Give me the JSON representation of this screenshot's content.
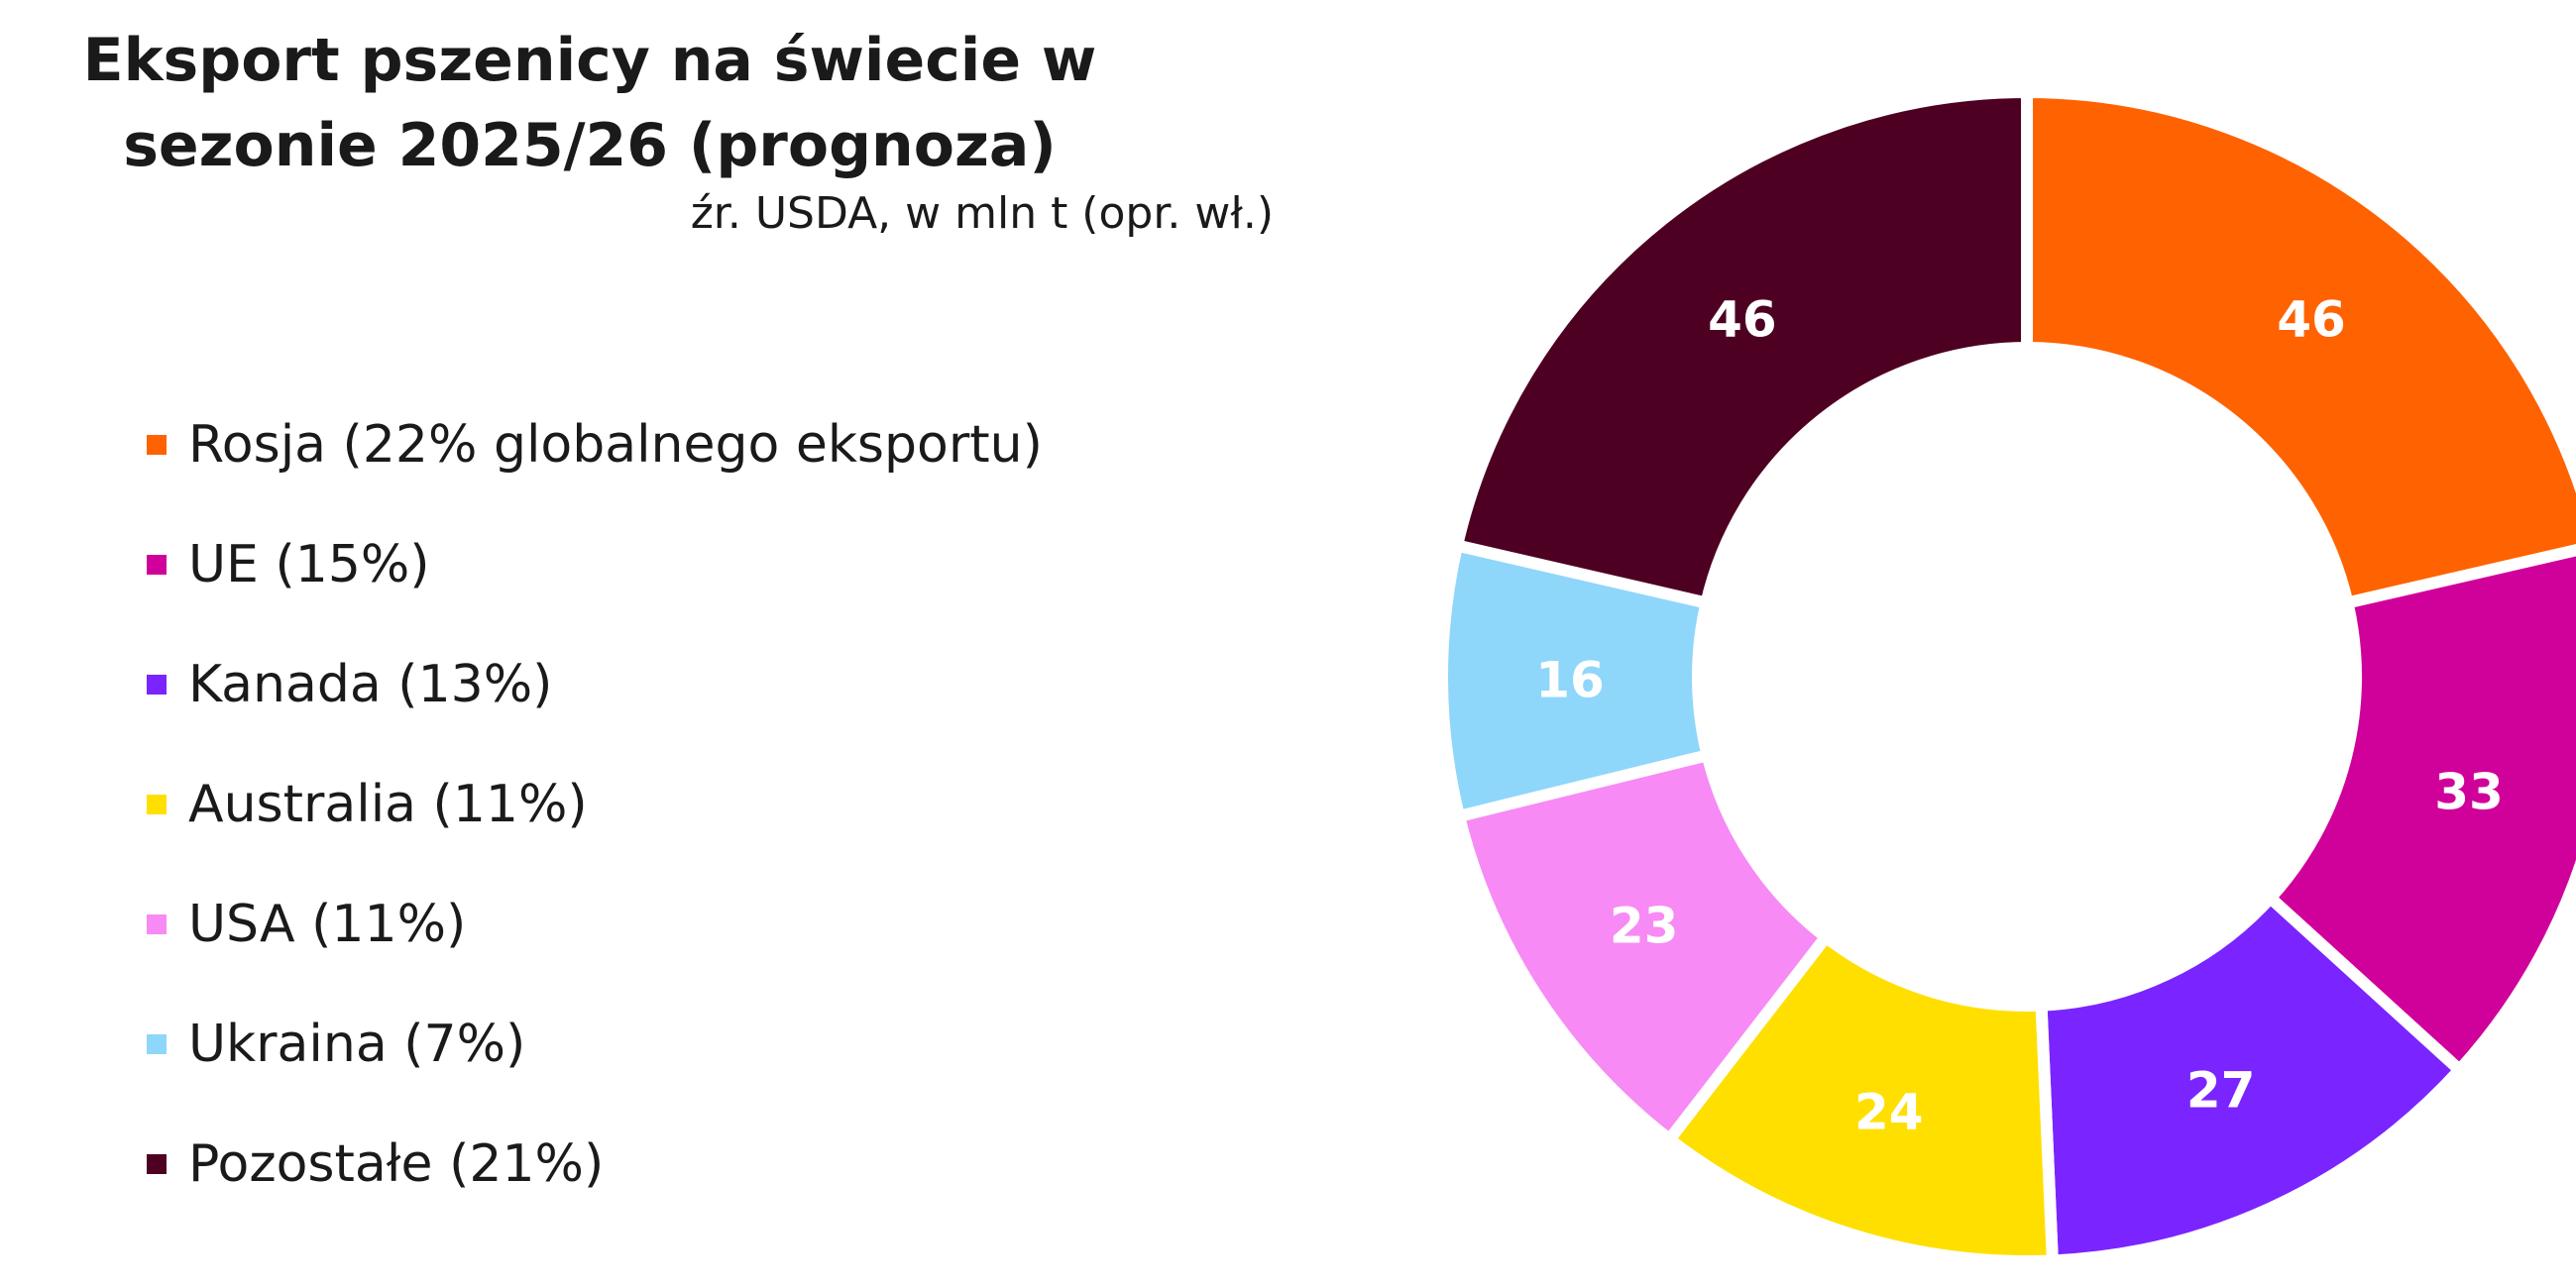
{
  "chart_data": {
    "type": "pie",
    "title": "Eksport pszenicy na świecie w sezonie 2025/26 (prognoza)",
    "subtitle": "źr. USDA, w mln t (opr. wł.)",
    "donut": true,
    "legend_position": "left",
    "slices": [
      {
        "label": "Rosja (22% globalnego eksportu)",
        "value": 46,
        "color": "#FF6200"
      },
      {
        "label": "UE (15%)",
        "value": 33,
        "color": "#D0019A"
      },
      {
        "label": "Kanada (13%)",
        "value": 27,
        "color": "#7A24FF"
      },
      {
        "label": "Australia (11%)",
        "value": 24,
        "color": "#FFDF00"
      },
      {
        "label": "USA (11%)",
        "value": 23,
        "color": "#F78AF4"
      },
      {
        "label": "Ukraina (7%)",
        "value": 16,
        "color": "#8FD6FB"
      },
      {
        "label": "Pozostałe (21%)",
        "value": 46,
        "color": "#4E0022"
      }
    ]
  }
}
